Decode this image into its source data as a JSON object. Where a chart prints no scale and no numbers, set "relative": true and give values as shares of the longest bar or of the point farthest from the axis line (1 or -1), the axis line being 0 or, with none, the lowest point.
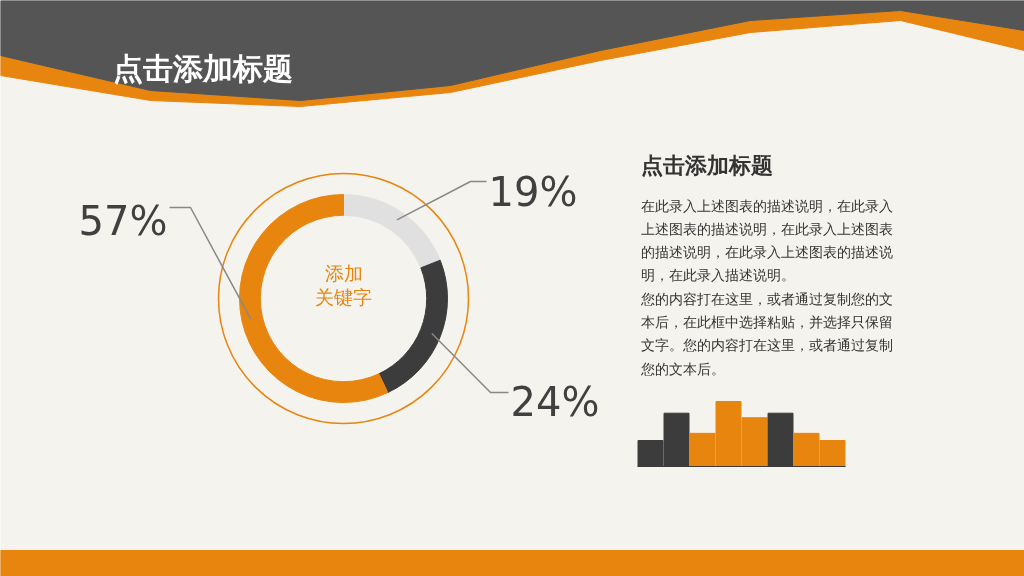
{
  "chart_data": [
    {
      "type": "donut",
      "title": "点击添加标题",
      "categories": [
        null,
        null,
        null
      ],
      "values": [
        19,
        24,
        57
      ],
      "colors": [
        "#e0e0e0",
        "#3c3c3c",
        "#e8850e"
      ],
      "value_labels": [
        "19%",
        "24%",
        "57%"
      ],
      "annotations": [
        "添加",
        "关键字"
      ]
    },
    {
      "type": "other",
      "title": "点击添加标题",
      "annotations": [
        "在此录入上述图表的描述说明，在此录入",
        "上述图表的描述说明，在此录入上述图表",
        "的描述说明，在此录入上述图表的描述说",
        "明，在此录入描述说明。",
        "您的内容打在这里，或者通过复制您的文",
        "本后，在此框中选择粘贴，并选择只保留",
        "文字。您的内容打在这里，或者通过复制",
        "您的文本后。"
      ]
    },
    {
      "type": "bar",
      "relative": true,
      "categories": [
        null,
        null,
        null,
        null,
        null,
        null,
        null,
        null
      ],
      "values": [
        0.4,
        0.82,
        0.51,
        1,
        0.75,
        0.82,
        0.51,
        0.4
      ],
      "colors": [
        "#3c3c3c",
        "#3c3c3c",
        "#e8850e",
        "#e8850e",
        "#e8850e",
        "#3c3c3c",
        "#e8850e",
        "#e8850e"
      ]
    }
  ]
}
